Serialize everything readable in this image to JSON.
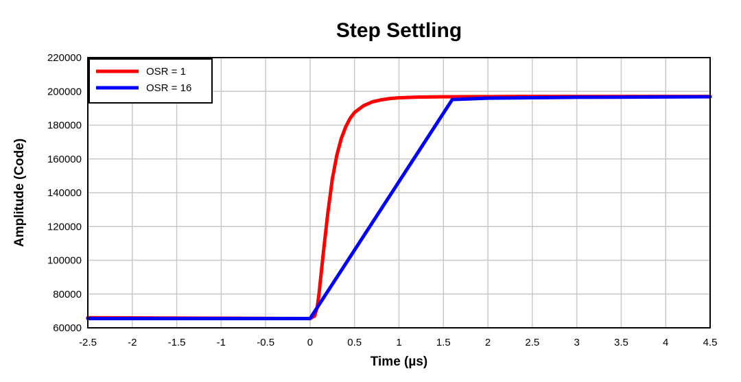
{
  "chart_data": {
    "type": "line",
    "title": "Step Settling",
    "xlabel": "Time (µs)",
    "ylabel": "Amplitude (Code)",
    "xlim": [
      -2.5,
      4.5
    ],
    "ylim": [
      60000,
      220000
    ],
    "xticks": [
      -2.5,
      -2,
      -1.5,
      -1,
      -0.5,
      0,
      0.5,
      1,
      1.5,
      2,
      2.5,
      3,
      3.5,
      4,
      4.5
    ],
    "xtick_labels": [
      "-2.5",
      "-2",
      "-1.5",
      "-1",
      "-0.5",
      "0",
      "0.5",
      "1",
      "1.5",
      "2",
      "2.5",
      "3",
      "3.5",
      "4",
      "4.5"
    ],
    "yticks": [
      60000,
      80000,
      100000,
      120000,
      140000,
      160000,
      180000,
      200000,
      220000
    ],
    "ytick_labels": [
      "60000",
      "80000",
      "100000",
      "120000",
      "140000",
      "160000",
      "180000",
      "200000",
      "220000"
    ],
    "grid": true,
    "legend_position": "top-left",
    "series": [
      {
        "name": "OSR = 1",
        "color": "#ff0000",
        "x": [
          -2.5,
          -1.6,
          0,
          0.05,
          0.08,
          0.1,
          0.12,
          0.15,
          0.2,
          0.25,
          0.3,
          0.35,
          0.4,
          0.45,
          0.5,
          0.6,
          0.7,
          0.8,
          0.9,
          1.0,
          1.2,
          1.5,
          2.0,
          2.5,
          3.0,
          4.5
        ],
        "y": [
          66000,
          65800,
          65500,
          67000,
          72000,
          80000,
          90000,
          105000,
          128000,
          148000,
          162000,
          172000,
          179000,
          184000,
          187500,
          191500,
          193800,
          195000,
          195800,
          196200,
          196600,
          196800,
          196900,
          197000,
          197000,
          197000
        ]
      },
      {
        "name": "OSR = 16",
        "color": "#0000ff",
        "x": [
          -2.5,
          0,
          1.6,
          2.0,
          3.0,
          4.5
        ],
        "y": [
          65500,
          65500,
          195200,
          196000,
          196500,
          196800
        ]
      }
    ]
  }
}
